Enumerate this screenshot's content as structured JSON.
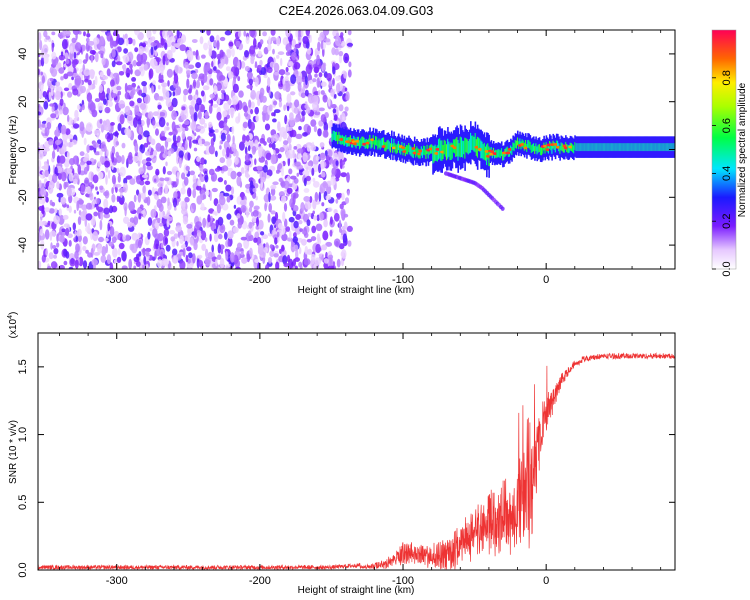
{
  "title": "C2E4.2026.063.04.09.G03",
  "chart_data": [
    {
      "type": "heatmap",
      "name": "spectrogram",
      "xlabel": "Height of straight line (km)",
      "ylabel": "Frequency (Hz)",
      "xlim": [
        -355,
        90
      ],
      "ylim": [
        -50,
        50
      ],
      "xticks": [
        -300,
        -200,
        -100,
        0
      ],
      "xtick_labels": [
        "-300",
        "-200",
        "-100",
        "0"
      ],
      "yticks": [
        -40,
        -20,
        0,
        20,
        40
      ],
      "ytick_labels": [
        "-40",
        "-20",
        "0",
        "20",
        "40"
      ],
      "noise_region_end_km": -140,
      "signal_track": {
        "x": [
          -150,
          -140,
          -130,
          -120,
          -110,
          -100,
          -90,
          -80,
          -70,
          -60,
          -50,
          -45,
          -40,
          -35,
          -30,
          -25,
          -20,
          -15,
          -10,
          -5,
          0,
          10,
          20,
          40,
          60,
          90
        ],
        "y": [
          5,
          4,
          3,
          3,
          2,
          0,
          -1,
          -1,
          0,
          1,
          2,
          0,
          -2,
          -1,
          -2,
          -1,
          3,
          2,
          1,
          0,
          1,
          1,
          1,
          1,
          1,
          1
        ]
      },
      "secondary_track": {
        "x": [
          -70,
          -60,
          -50,
          -45,
          -40,
          -35,
          -30
        ],
        "y": [
          -10,
          -12,
          -14,
          -16,
          -19,
          -22,
          -25
        ]
      },
      "colorbar": {
        "label": "Normalized spectral amplitude",
        "range": [
          0,
          1
        ],
        "ticks": [
          0.0,
          0.2,
          0.4,
          0.6,
          0.8
        ],
        "tick_labels": [
          "0.0",
          "0.2",
          "0.4",
          "0.6",
          "0.8"
        ]
      }
    },
    {
      "type": "line",
      "name": "snr",
      "xlabel": "Height of straight line (km)",
      "ylabel": "SNR (10 * v/v)",
      "multiplier_label": "(x10",
      "multiplier_exponent": "4",
      "multiplier_close": ")",
      "xlim": [
        -355,
        90
      ],
      "ylim": [
        0,
        1.75
      ],
      "xticks": [
        -300,
        -200,
        -100,
        0
      ],
      "xtick_labels": [
        "-300",
        "-200",
        "-100",
        "0"
      ],
      "yticks": [
        0.0,
        0.5,
        1.0,
        1.5
      ],
      "ytick_labels": [
        "0.0",
        "0.5",
        "1.0",
        "1.5"
      ],
      "line_color": "#ee3333",
      "envelope": {
        "x": [
          -355,
          -250,
          -150,
          -125,
          -110,
          -100,
          -90,
          -80,
          -70,
          -60,
          -50,
          -45,
          -40,
          -35,
          -30,
          -25,
          -20,
          -15,
          -12,
          -10,
          -5,
          0,
          10,
          20,
          40,
          60,
          90
        ],
        "y": [
          0.02,
          0.02,
          0.02,
          0.04,
          0.1,
          0.22,
          0.2,
          0.22,
          0.25,
          0.35,
          0.5,
          0.55,
          0.65,
          0.55,
          0.75,
          0.6,
          0.8,
          0.9,
          1.0,
          0.95,
          1.2,
          1.3,
          1.45,
          1.55,
          1.58,
          1.58,
          1.58
        ]
      },
      "spread": {
        "x": [
          -355,
          -250,
          -150,
          -125,
          -110,
          -100,
          -90,
          -80,
          -70,
          -60,
          -50,
          -45,
          -40,
          -35,
          -30,
          -25,
          -20,
          -15,
          -12,
          -10,
          -5,
          0,
          10,
          20,
          40,
          60,
          90
        ],
        "y": [
          0.02,
          0.02,
          0.02,
          0.03,
          0.08,
          0.15,
          0.15,
          0.18,
          0.25,
          0.3,
          0.35,
          0.4,
          0.45,
          0.4,
          0.5,
          0.5,
          0.55,
          0.6,
          0.75,
          0.6,
          0.4,
          0.25,
          0.1,
          0.04,
          0.02,
          0.02,
          0.02
        ]
      }
    }
  ]
}
